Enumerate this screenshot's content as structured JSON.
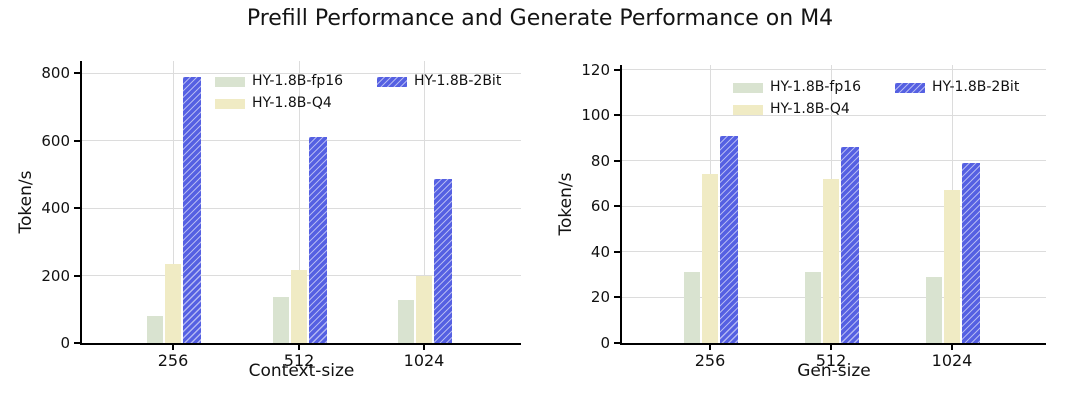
{
  "title": "Prefill Performance and Generate Performance on M4",
  "colors": {
    "fp16": "#d9e3d0",
    "q4": "#f0ebc4",
    "bit2": "#5560e2",
    "hatch_line": "rgba(255,255,255,0.55)",
    "grid": "#dcdcdc",
    "axis": "#000000",
    "text": "#111111"
  },
  "chart_data": [
    {
      "type": "bar",
      "name": "prefill-performance",
      "categories": [
        "256",
        "512",
        "1024"
      ],
      "series": [
        {
          "name": "HY-1.8B-fp16",
          "values": [
            80,
            135,
            128
          ],
          "color_key": "fp16",
          "hatch": false
        },
        {
          "name": "HY-1.8B-Q4",
          "values": [
            235,
            215,
            200
          ],
          "color_key": "q4",
          "hatch": false
        },
        {
          "name": "HY-1.8B-2Bit",
          "values": [
            790,
            610,
            485
          ],
          "color_key": "bit2",
          "hatch": true
        }
      ],
      "xlabel": "Context-size",
      "ylabel": "Token/s",
      "ylim": [
        0,
        836
      ],
      "yticks": [
        0,
        200,
        400,
        600,
        800
      ],
      "grid": true,
      "legend_position": "upper-center",
      "legend_frame": false
    },
    {
      "type": "bar",
      "name": "generate-performance",
      "categories": [
        "256",
        "512",
        "1024"
      ],
      "series": [
        {
          "name": "HY-1.8B-fp16",
          "values": [
            31,
            31,
            29
          ],
          "color_key": "fp16",
          "hatch": false
        },
        {
          "name": "HY-1.8B-Q4",
          "values": [
            74,
            72,
            67
          ],
          "color_key": "q4",
          "hatch": false
        },
        {
          "name": "HY-1.8B-2Bit",
          "values": [
            91,
            86,
            79
          ],
          "color_key": "bit2",
          "hatch": true
        }
      ],
      "xlabel": "Gen-size",
      "ylabel": "Token/s",
      "ylim": [
        0,
        122
      ],
      "yticks": [
        0,
        20,
        40,
        60,
        80,
        100,
        120
      ],
      "grid": true,
      "legend_position": "upper-center",
      "legend_frame": false
    }
  ]
}
